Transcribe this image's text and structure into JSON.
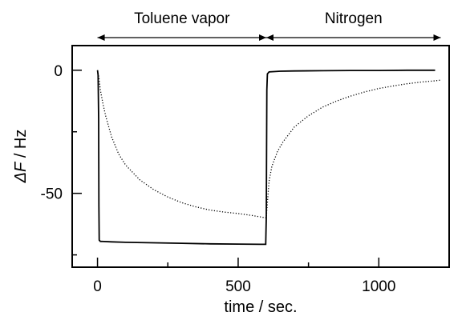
{
  "chart_data": {
    "type": "line",
    "xlabel": "time / sec.",
    "ylabel_symbol": "ΔF",
    "ylabel_unit": " / Hz",
    "xlim": [
      -90,
      1250
    ],
    "ylim": [
      -80,
      10
    ],
    "x_ticks": [
      0,
      500,
      1000
    ],
    "x_minor_ticks": [
      250,
      750
    ],
    "y_ticks": [
      0,
      -50
    ],
    "y_minor_ticks": [
      -25,
      -75
    ],
    "grid": false,
    "annotations": [
      {
        "label": "Toluene vapor",
        "x_start": 0,
        "x_end": 600
      },
      {
        "label": "Nitrogen",
        "x_start": 600,
        "x_end": 1220
      }
    ],
    "series": [
      {
        "style": "solid",
        "x": [
          0,
          2,
          4,
          5,
          6,
          10,
          50,
          100,
          200,
          300,
          400,
          500,
          580,
          598,
          600,
          602,
          604,
          610,
          650,
          700,
          800,
          900,
          1000,
          1100,
          1200
        ],
        "y": [
          0,
          -2,
          -20,
          -55,
          -69,
          -69.5,
          -69.7,
          -69.9,
          -70.1,
          -70.3,
          -70.5,
          -70.6,
          -70.7,
          -70.7,
          -60,
          -8,
          -1.5,
          -0.7,
          -0.4,
          -0.3,
          -0.2,
          -0.1,
          -0.1,
          0,
          0
        ]
      },
      {
        "style": "dotted",
        "x": [
          0,
          5,
          10,
          20,
          30,
          50,
          75,
          100,
          150,
          200,
          250,
          300,
          350,
          400,
          450,
          500,
          550,
          600,
          605,
          610,
          620,
          640,
          660,
          700,
          750,
          800,
          850,
          900,
          950,
          1000,
          1050,
          1100,
          1150,
          1200,
          1220
        ],
        "y": [
          0,
          -3,
          -8,
          -14,
          -19,
          -27,
          -34,
          -38.5,
          -44.5,
          -48.5,
          -51.5,
          -53.8,
          -55.5,
          -56.8,
          -57.6,
          -58.2,
          -59,
          -60,
          -52,
          -45,
          -39,
          -33,
          -29,
          -23,
          -18.5,
          -15,
          -12.5,
          -10.5,
          -8.8,
          -7.4,
          -6.4,
          -5.5,
          -4.8,
          -4.3,
          -4
        ]
      }
    ]
  }
}
